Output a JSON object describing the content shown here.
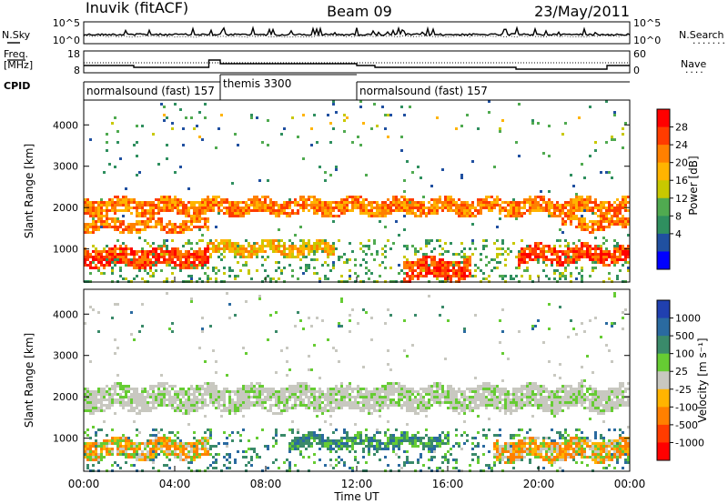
{
  "header": {
    "station": "Inuvik (fitACF)",
    "beam": "Beam 09",
    "date": "23/May/2011"
  },
  "noise_panel": {
    "left_label": "N.Sky",
    "left_ticks": [
      "10^5",
      "10^0"
    ],
    "right_ticks": [
      "10^5",
      "10^0"
    ],
    "right_label": "N.Search",
    "right_dots": "........"
  },
  "freq_panel": {
    "left_label_1": "Freq.",
    "left_label_2": "[MHz]",
    "left_ticks": [
      "18",
      "8"
    ],
    "right_ticks": [
      "60",
      "0"
    ],
    "right_label": "Nave",
    "right_dots": "...."
  },
  "cpid": {
    "label": "CPID",
    "segments": [
      {
        "text": "normalsound (fast) 157",
        "start": 0,
        "end": 6
      },
      {
        "text": "themis 3300",
        "start": 6,
        "end": 12
      },
      {
        "text": "normalsound (fast) 157",
        "start": 12,
        "end": 24
      }
    ]
  },
  "power_colorbar": {
    "label": "Power [dB]",
    "ticks": [
      "28",
      "24",
      "20",
      "16",
      "12",
      "8",
      "4"
    ],
    "colors": [
      "#ff0000",
      "#ff3c00",
      "#ff8000",
      "#ffb400",
      "#c8c800",
      "#50aa50",
      "#2f8f5f",
      "#2050a0",
      "#0000ff"
    ]
  },
  "velocity_colorbar": {
    "label": "Velocity [m s⁻¹]",
    "ticks": [
      "1000",
      "500",
      "100",
      "25",
      "-25",
      "-100",
      "-500",
      "-1000"
    ],
    "colors": [
      "#2040b0",
      "#2a6aa0",
      "#3a8a6a",
      "#66cc33",
      "#c8c8c0",
      "#ffb400",
      "#ff8000",
      "#ff3c00",
      "#ff0000"
    ]
  },
  "chart_data": {
    "type": "heatmap",
    "ylabel": "Slant Range [km]",
    "xlabel": "Time UT",
    "x_ticks": [
      "00:00",
      "04:00",
      "08:00",
      "12:00",
      "16:00",
      "20:00",
      "00:00"
    ],
    "xlim": [
      0,
      24
    ],
    "ylim": [
      200,
      4600
    ],
    "y_ticks": [
      1000,
      2000,
      3000,
      4000
    ],
    "power_bands": [
      {
        "t0": 0,
        "t1": 5.5,
        "r0": 600,
        "r1": 1050,
        "level": 1
      },
      {
        "t0": 0,
        "t1": 5.5,
        "r0": 1450,
        "r1": 1750,
        "level": 2
      },
      {
        "t0": 0,
        "t1": 24,
        "r0": 1850,
        "r1": 2250,
        "level": 2
      },
      {
        "t0": 5.5,
        "t1": 11,
        "r0": 900,
        "r1": 1200,
        "level": 3
      },
      {
        "t0": 8,
        "t1": 12,
        "r0": 1950,
        "r1": 2150,
        "level": 1
      },
      {
        "t0": 14,
        "t1": 17,
        "r0": 300,
        "r1": 800,
        "level": 1
      },
      {
        "t0": 19,
        "t1": 24,
        "r0": 700,
        "r1": 1100,
        "level": 1
      },
      {
        "t0": 21,
        "t1": 24,
        "r0": 1500,
        "r1": 1800,
        "level": 2
      }
    ],
    "velocity_bands": [
      {
        "t0": 0,
        "t1": 24,
        "r0": 1700,
        "r1": 2300,
        "class": "near-zero"
      },
      {
        "t0": 0,
        "t1": 5.5,
        "r0": 550,
        "r1": 1000,
        "class": "negative"
      },
      {
        "t0": 9,
        "t1": 16,
        "r0": 800,
        "r1": 1100,
        "class": "positive"
      },
      {
        "t0": 18,
        "t1": 24,
        "r0": 500,
        "r1": 1000,
        "class": "negative"
      }
    ]
  }
}
